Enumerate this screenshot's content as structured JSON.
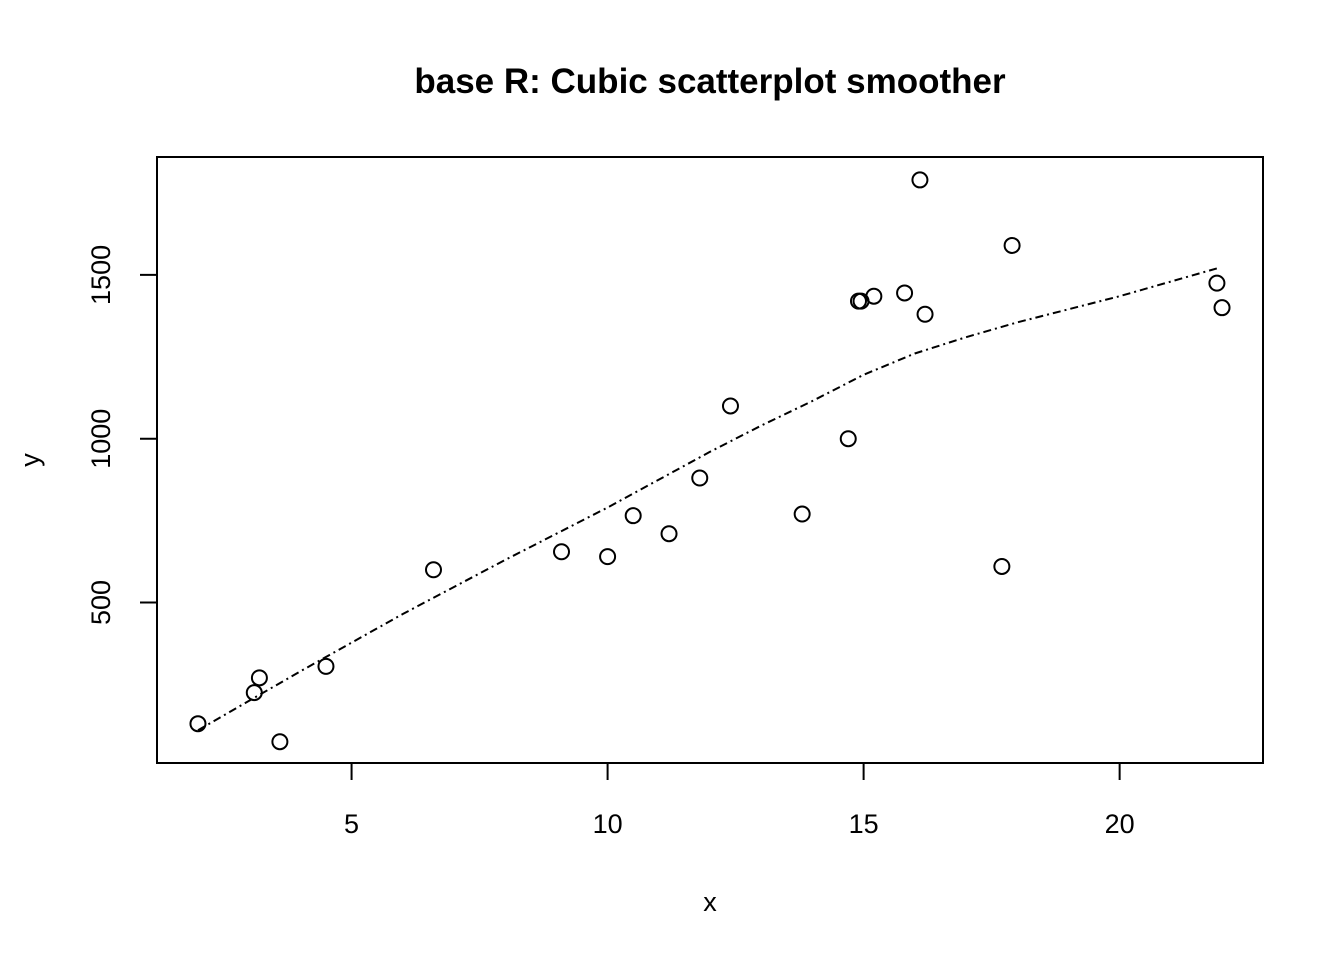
{
  "chart_data": {
    "type": "scatter",
    "title": "base R: Cubic scatterplot smoother",
    "xlabel": "x",
    "ylabel": "y",
    "xlim": [
      1.2,
      22.8
    ],
    "ylim": [
      10,
      1860
    ],
    "xticks": [
      5,
      10,
      15,
      20
    ],
    "yticks": [
      500,
      1000,
      1500
    ],
    "grid": false,
    "legend": "none",
    "series": [
      {
        "kind": "points",
        "marker": "open-circle",
        "x": [
          2.0,
          3.1,
          3.2,
          3.6,
          4.5,
          6.6,
          9.1,
          10.0,
          10.5,
          11.2,
          11.8,
          12.4,
          13.8,
          14.7,
          14.9,
          14.95,
          15.2,
          15.8,
          16.1,
          16.2,
          17.7,
          17.9,
          21.9,
          22.0
        ],
        "y": [
          130,
          225,
          270,
          75,
          305,
          600,
          655,
          640,
          765,
          710,
          880,
          1100,
          770,
          1000,
          1420,
          1420,
          1435,
          1445,
          1790,
          1380,
          610,
          1590,
          1475,
          1400
        ]
      },
      {
        "kind": "line",
        "style": "dot-dash",
        "x": [
          2.0,
          4.0,
          6.0,
          8.0,
          10.0,
          12.0,
          13.0,
          14.0,
          15.0,
          16.0,
          17.0,
          18.0,
          20.0,
          21.9
        ],
        "y": [
          110,
          290,
          465,
          630,
          790,
          960,
          1040,
          1115,
          1195,
          1260,
          1310,
          1355,
          1435,
          1520
        ]
      }
    ]
  }
}
